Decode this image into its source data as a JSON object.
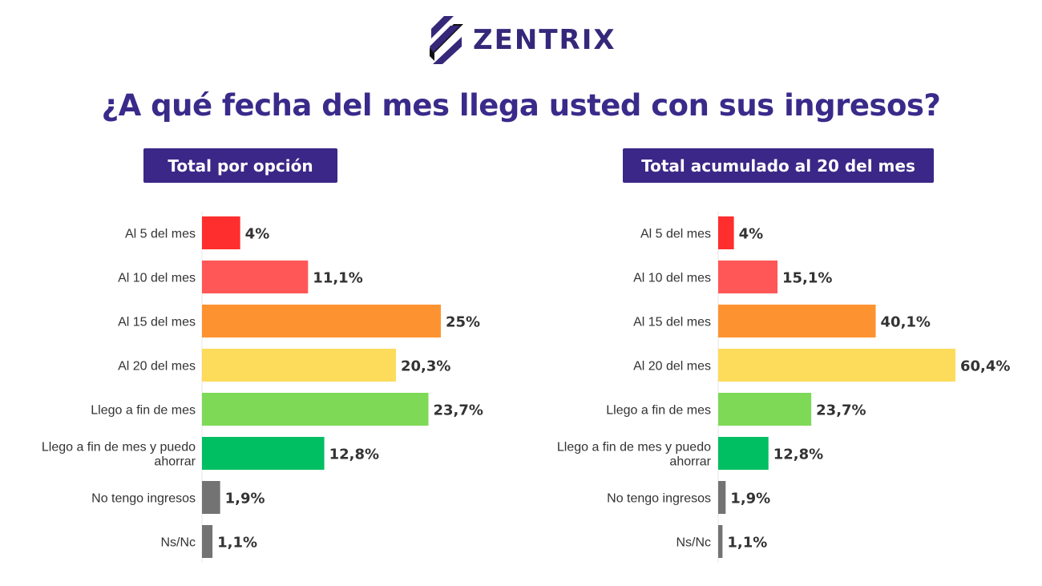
{
  "brand": {
    "name": "ZENTRIX",
    "logo_color": "#35287a"
  },
  "title": "¿A qué fecha del mes llega usted con sus ingresos?",
  "colors": {
    "title": "#3a2a8a",
    "label_bg": "#3b2787"
  },
  "chart_data": [
    {
      "type": "bar",
      "orientation": "horizontal",
      "title": "Total por opción",
      "categories": [
        "Al 5 del mes",
        "Al 10 del mes",
        "Al 15 del mes",
        "Al 20 del mes",
        "Llego a fin de mes",
        "Llego a fin de mes y puedo ahorrar",
        "No tengo ingresos",
        "Ns/Nc"
      ],
      "values": [
        4,
        11.1,
        25,
        20.3,
        23.7,
        12.8,
        1.9,
        1.1
      ],
      "labels": [
        "4%",
        "11,1%",
        "25%",
        "20,3%",
        "23,7%",
        "12,8%",
        "1,9%",
        "1,1%"
      ],
      "colors": [
        "#ff2e2e",
        "#ff5757",
        "#fd9330",
        "#fddc5c",
        "#7ed957",
        "#00bf63",
        "#737373",
        "#737373"
      ],
      "xlim": [
        0,
        25
      ],
      "grid": false
    },
    {
      "type": "bar",
      "orientation": "horizontal",
      "title": "Total acumulado al 20 del mes",
      "categories": [
        "Al 5 del mes",
        "Al 10 del mes",
        "Al 15 del mes",
        "Al 20 del mes",
        "Llego a fin de mes",
        "Llego a fin de mes y puedo ahorrar",
        "No tengo ingresos",
        "Ns/Nc"
      ],
      "values": [
        4,
        15.1,
        40.1,
        60.4,
        23.7,
        12.8,
        1.9,
        1.1
      ],
      "labels": [
        "4%",
        "15,1%",
        "40,1%",
        "60,4%",
        "23,7%",
        "12,8%",
        "1,9%",
        "1,1%"
      ],
      "colors": [
        "#ff2e2e",
        "#ff5757",
        "#fd9330",
        "#fddc5c",
        "#7ed957",
        "#00bf63",
        "#737373",
        "#737373"
      ],
      "xlim": [
        0,
        60.4
      ],
      "grid": false
    }
  ]
}
